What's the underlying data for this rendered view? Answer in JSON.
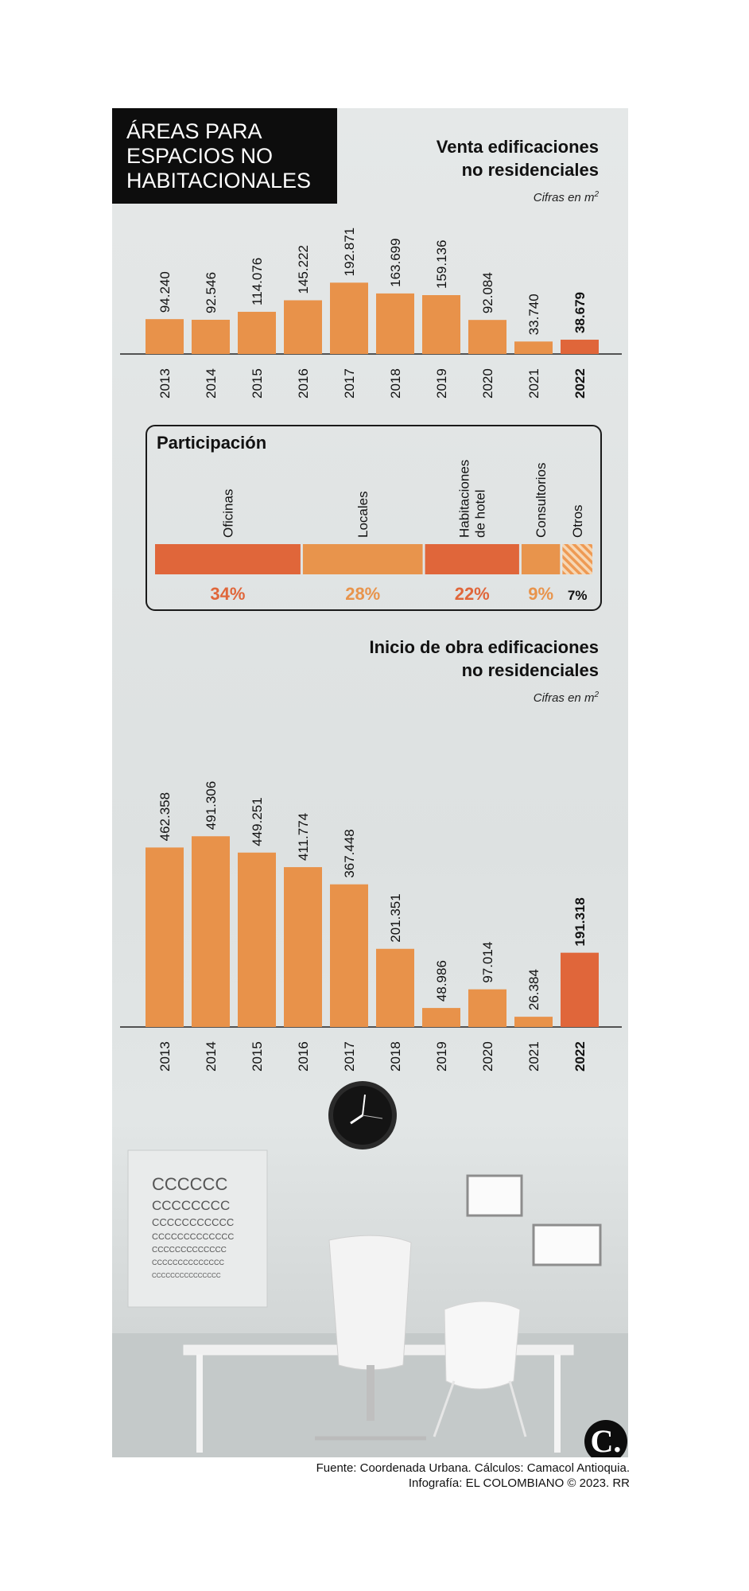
{
  "title": {
    "line1": "ÁREAS PARA",
    "line2": "ESPACIOS NO",
    "line3": "HABITACIONALES"
  },
  "colors": {
    "bar": "#e8924a",
    "highlight": "#e0663a",
    "oficinas": "#e0663a",
    "locales": "#e8944c",
    "habitaciones": "#e0663a",
    "consultorios": "#e8944c",
    "otros": "#ee9a54"
  },
  "chart_data": [
    {
      "type": "bar",
      "title": "Venta edificaciones no residenciales",
      "title_lines": [
        "Venta edificaciones",
        "no residenciales"
      ],
      "subtitle_prefix": "Cifras en m",
      "subtitle_sup": "2",
      "categories": [
        "2013",
        "2014",
        "2015",
        "2016",
        "2017",
        "2018",
        "2019",
        "2020",
        "2021",
        "2022"
      ],
      "values": [
        94240,
        92546,
        114076,
        145222,
        192871,
        163699,
        159136,
        92084,
        33740,
        38679
      ],
      "labels": [
        "94.240",
        "92.546",
        "114.076",
        "145.222",
        "192.871",
        "163.699",
        "159.136",
        "92.084",
        "33.740",
        "38.679"
      ],
      "highlight": "2022",
      "ylim": [
        0,
        200000
      ]
    },
    {
      "type": "bar",
      "title": "Inicio de obra edificaciones no residenciales",
      "title_lines": [
        "Inicio de obra edificaciones",
        "no residenciales"
      ],
      "subtitle_prefix": "Cifras en m",
      "subtitle_sup": "2",
      "categories": [
        "2013",
        "2014",
        "2015",
        "2016",
        "2017",
        "2018",
        "2019",
        "2020",
        "2021",
        "2022"
      ],
      "values": [
        462358,
        491306,
        449251,
        411774,
        367448,
        201351,
        48986,
        97014,
        26384,
        191318
      ],
      "labels": [
        "462.358",
        "491.306",
        "449.251",
        "411.774",
        "367.448",
        "201.351",
        "48.986",
        "97.014",
        "26.384",
        "191.318"
      ],
      "highlight": "2022",
      "ylim": [
        0,
        500000
      ]
    },
    {
      "type": "bar",
      "title": "Participación",
      "categories": [
        "Oficinas",
        "Locales",
        "Habitaciones de hotel",
        "Consultorios",
        "Otros"
      ],
      "category_lines": [
        [
          "Oficinas"
        ],
        [
          "Locales"
        ],
        [
          "Habitaciones",
          "de hotel"
        ],
        [
          "Consultorios"
        ],
        [
          "Otros"
        ]
      ],
      "values": [
        34,
        28,
        22,
        9,
        7
      ],
      "labels": [
        "34%",
        "28%",
        "22%",
        "9%",
        "7%"
      ]
    }
  ],
  "footer": {
    "line1": "Fuente: Coordenada Urbana. Cálculos: Camacol Antioquia.",
    "line2": "Infografía: EL COLOMBIANO © 2023. RR"
  },
  "logo": "C."
}
